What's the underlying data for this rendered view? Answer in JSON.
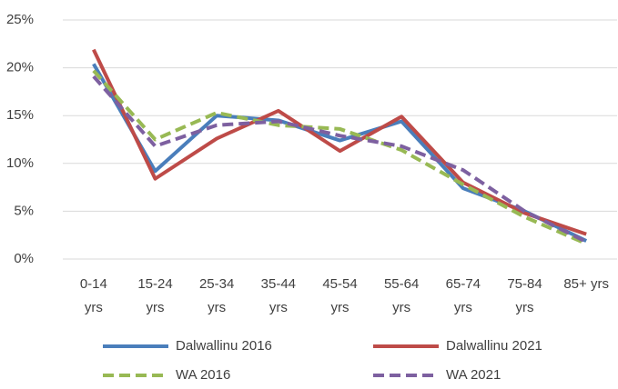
{
  "chart_data": {
    "type": "line",
    "categories": [
      "0-14 yrs",
      "15-24 yrs",
      "25-34 yrs",
      "35-44 yrs",
      "45-54 yrs",
      "55-64 yrs",
      "65-74 yrs",
      "75-84 yrs",
      "85+ yrs"
    ],
    "series": [
      {
        "name": "Dalwallinu 2016",
        "color": "#4a7ebb",
        "dashed": false,
        "values": [
          20.4,
          9.2,
          15.0,
          14.5,
          12.4,
          14.4,
          7.4,
          5.0,
          1.9
        ]
      },
      {
        "name": "Dalwallinu 2021",
        "color": "#be4b48",
        "dashed": false,
        "values": [
          21.9,
          8.4,
          12.6,
          15.5,
          11.3,
          14.9,
          8.0,
          4.8,
          2.6
        ]
      },
      {
        "name": "WA 2016",
        "color": "#98b954",
        "dashed": true,
        "values": [
          19.7,
          12.5,
          15.3,
          14.0,
          13.6,
          11.4,
          7.8,
          4.4,
          1.6
        ]
      },
      {
        "name": "WA 2021",
        "color": "#7d60a0",
        "dashed": true,
        "values": [
          19.1,
          11.8,
          14.0,
          14.4,
          12.9,
          11.8,
          9.3,
          5.0,
          1.8
        ]
      }
    ],
    "ylim": [
      0,
      25
    ],
    "yticks": [
      {
        "value": 0,
        "label": "0%"
      },
      {
        "value": 5,
        "label": "5%"
      },
      {
        "value": 10,
        "label": "10%"
      },
      {
        "value": 15,
        "label": "15%"
      },
      {
        "value": 20,
        "label": "20%"
      },
      {
        "value": 25,
        "label": "25%"
      }
    ],
    "grid": true,
    "legend": "bottom"
  }
}
